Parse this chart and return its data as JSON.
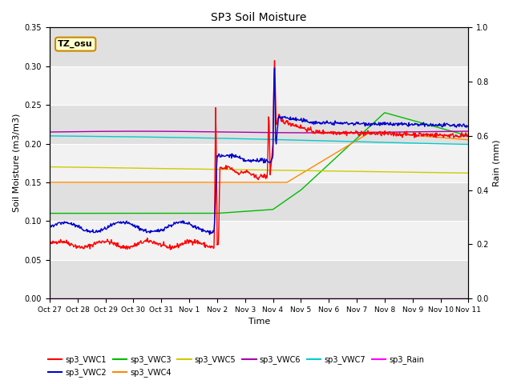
{
  "title": "SP3 Soil Moisture",
  "xlabel": "Time",
  "ylabel_left": "Soil Moisture (m3/m3)",
  "ylabel_right": "Rain (mm)",
  "ylim_left": [
    0.0,
    0.35
  ],
  "ylim_right": [
    0.0,
    1.0
  ],
  "bg_color": "#e0e0e0",
  "annotation_text": "TZ_osu",
  "annotation_bg": "#ffffcc",
  "annotation_border": "#cc8800",
  "xtick_labels": [
    "Oct 27",
    "Oct 28",
    "Oct 29",
    "Oct 30",
    "Oct 31",
    "Nov 1",
    "Nov 2",
    "Nov 3",
    "Nov 4",
    "Nov 5",
    "Nov 6",
    "Nov 7",
    "Nov 8",
    "Nov 9",
    "Nov 10",
    "Nov 11"
  ],
  "series_colors": {
    "sp3_VWC1": "#ff0000",
    "sp3_VWC2": "#0000cc",
    "sp3_VWC3": "#00bb00",
    "sp3_VWC4": "#ff8800",
    "sp3_VWC5": "#cccc00",
    "sp3_VWC6": "#aa00aa",
    "sp3_VWC7": "#00cccc",
    "sp3_Rain": "#ff00ff"
  },
  "figsize": [
    6.4,
    4.8
  ],
  "dpi": 100
}
